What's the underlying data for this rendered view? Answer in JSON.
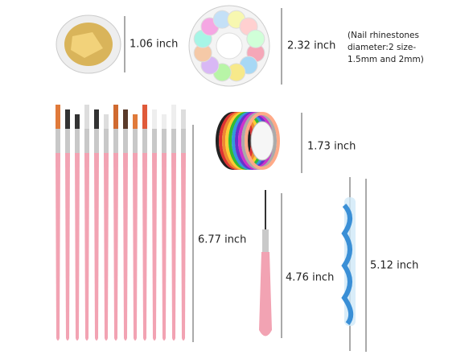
{
  "dimensions": {
    "foil_jar": "1.06 inch",
    "rhinestone_wheel": "2.32 inch",
    "rhinestone_note": [
      "(Nail rhinestones",
      "diameter:2 size-",
      "1.5mm and 2mm)"
    ],
    "striping_tape": "1.73 inch",
    "brush_set": "6.77 inch",
    "liner_brush": "4.76 inch",
    "dotting_tool": "5.12 inch"
  }
}
